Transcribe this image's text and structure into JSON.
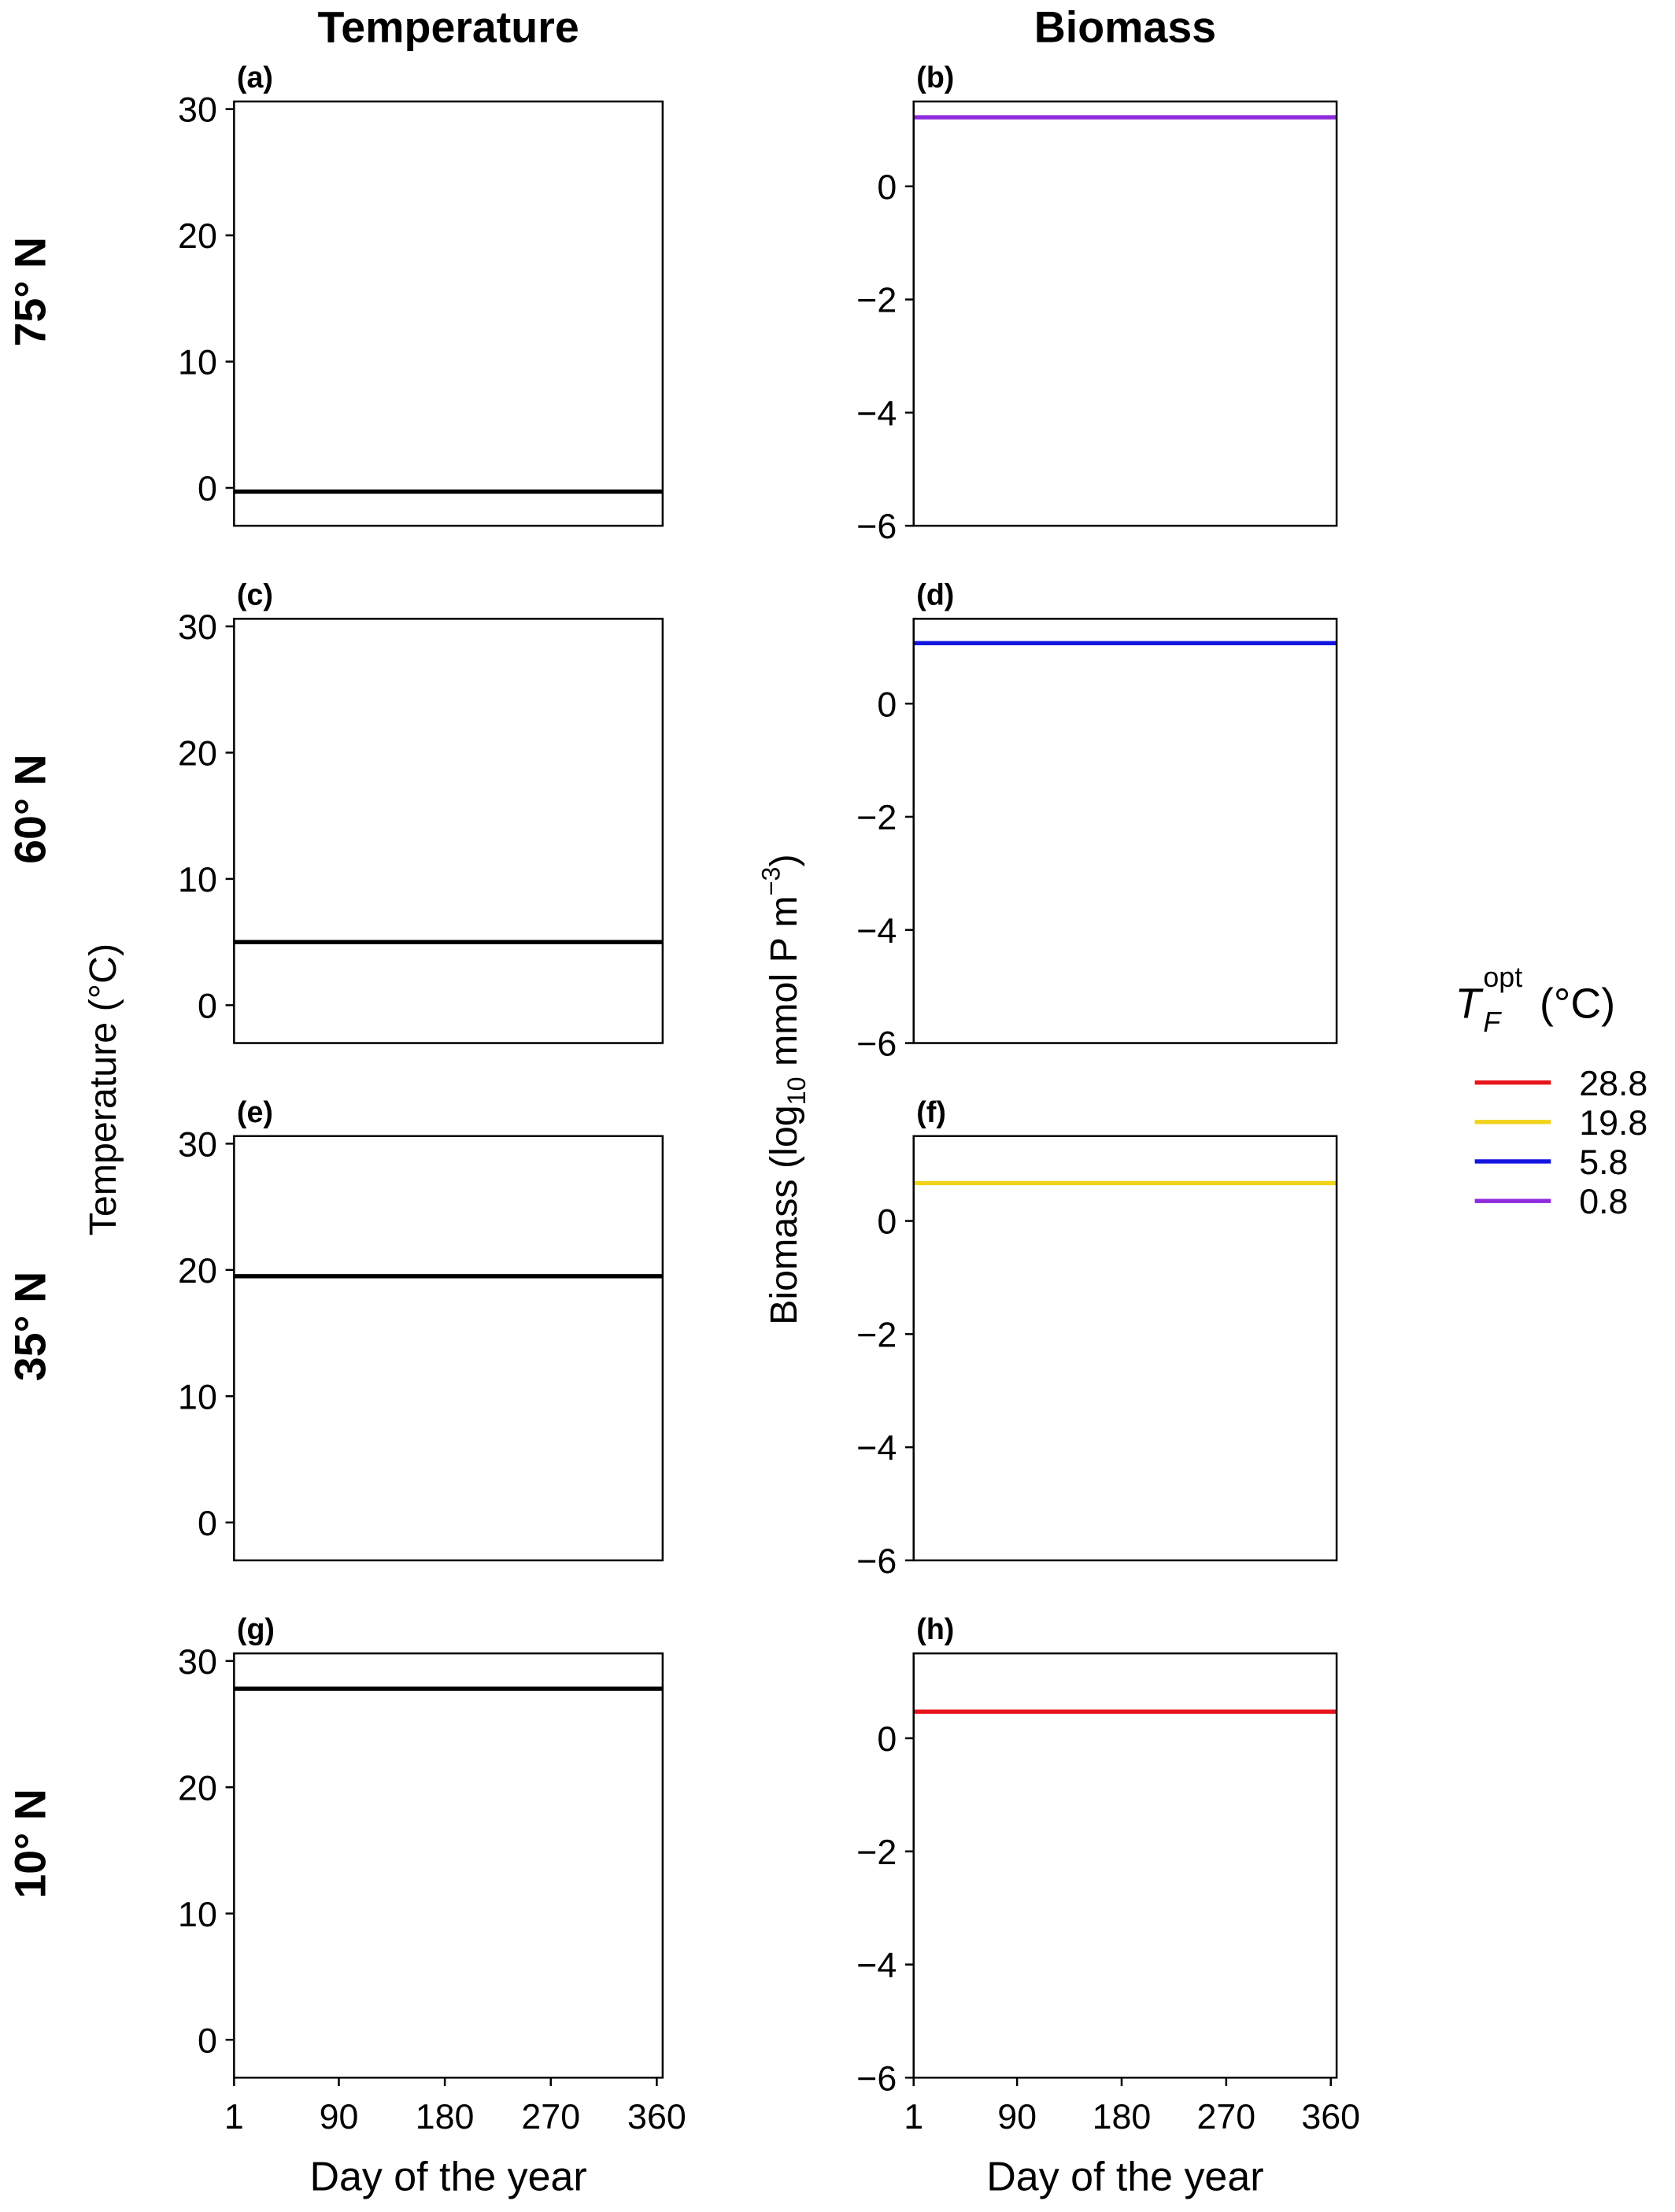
{
  "column_titles": [
    "Temperature",
    "Biomass"
  ],
  "row_labels": [
    "75° N",
    "60° N",
    "35° N",
    "10° N"
  ],
  "y_labels": {
    "temperature": "Temperature (°C)",
    "biomass": [
      "Biomass (log",
      "10",
      " mmol P m",
      "−3",
      ")"
    ]
  },
  "legend": {
    "title": [
      "T",
      "F",
      "opt",
      "(°C)"
    ]
  },
  "chart_data": [
    {
      "type": "line",
      "panel_label": "(a)",
      "x": [
        1,
        365
      ],
      "values": [
        -0.3,
        -0.3
      ],
      "color": "#000000",
      "xlim": [
        1,
        365
      ],
      "ylim": [
        -3,
        30.6
      ],
      "yticks": [
        0,
        10,
        20,
        30
      ]
    },
    {
      "type": "line",
      "panel_label": "(b)",
      "x": [
        1,
        365
      ],
      "series": [
        {
          "name": "0.8",
          "color": "#8f2bdc",
          "values": [
            1.22,
            1.22
          ]
        }
      ],
      "xlim": [
        1,
        365
      ],
      "ylim": [
        -6,
        1.5
      ],
      "yticks": [
        {
          "value": -6,
          "label": "−6"
        },
        {
          "value": -4,
          "label": "−4"
        },
        {
          "value": -2,
          "label": "−2"
        },
        0
      ]
    },
    {
      "type": "line",
      "panel_label": "(c)",
      "x": [
        1,
        365
      ],
      "values": [
        5.0,
        5.0
      ],
      "color": "#000000",
      "xlim": [
        1,
        365
      ],
      "ylim": [
        -3,
        30.6
      ],
      "yticks": [
        0,
        10,
        20,
        30
      ]
    },
    {
      "type": "line",
      "panel_label": "(d)",
      "x": [
        1,
        365
      ],
      "series": [
        {
          "name": "5.8",
          "color": "#1515e0",
          "values": [
            1.07,
            1.07
          ]
        }
      ],
      "xlim": [
        1,
        365
      ],
      "ylim": [
        -6,
        1.5
      ],
      "yticks": [
        {
          "value": -6,
          "label": "−6"
        },
        {
          "value": -4,
          "label": "−4"
        },
        {
          "value": -2,
          "label": "−2"
        },
        0
      ]
    },
    {
      "type": "line",
      "panel_label": "(e)",
      "x": [
        1,
        365
      ],
      "values": [
        19.5,
        19.5
      ],
      "color": "#000000",
      "xlim": [
        1,
        365
      ],
      "ylim": [
        -3,
        30.6
      ],
      "yticks": [
        0,
        10,
        20,
        30
      ]
    },
    {
      "type": "line",
      "panel_label": "(f)",
      "x": [
        1,
        365
      ],
      "series": [
        {
          "name": "19.8",
          "color": "#f2d21b",
          "values": [
            0.67,
            0.67
          ]
        }
      ],
      "xlim": [
        1,
        365
      ],
      "ylim": [
        -6,
        1.5
      ],
      "yticks": [
        {
          "value": -6,
          "label": "−6"
        },
        {
          "value": -4,
          "label": "−4"
        },
        {
          "value": -2,
          "label": "−2"
        },
        0
      ]
    },
    {
      "type": "line",
      "panel_label": "(g)",
      "x": [
        1,
        365
      ],
      "values": [
        27.8,
        27.8
      ],
      "color": "#000000",
      "xlim": [
        1,
        365
      ],
      "ylim": [
        -3,
        30.6
      ],
      "yticks": [
        0,
        10,
        20,
        30
      ],
      "xticks": [
        1,
        90,
        180,
        270,
        360
      ],
      "x_label": "Day of the year"
    },
    {
      "type": "line",
      "panel_label": "(h)",
      "x": [
        1,
        365
      ],
      "series": [
        {
          "name": "28.8",
          "color": "#e8141c",
          "values": [
            0.47,
            0.47
          ]
        }
      ],
      "xlim": [
        1,
        365
      ],
      "ylim": [
        -6,
        1.5
      ],
      "yticks": [
        {
          "value": -6,
          "label": "−6"
        },
        {
          "value": -4,
          "label": "−4"
        },
        {
          "value": -2,
          "label": "−2"
        },
        0
      ],
      "xticks": [
        1,
        90,
        180,
        270,
        360
      ],
      "x_label": "Day of the year"
    }
  ]
}
